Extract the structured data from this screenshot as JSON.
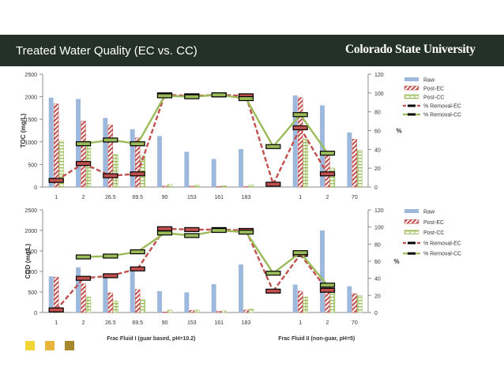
{
  "header": {
    "title": "Treated Water Quality (EC vs. CC)",
    "logo": "Colorado State University"
  },
  "colors": {
    "header_bg": "#243128",
    "raw": "#9db8dd",
    "post_ec": "#c0504d",
    "post_cc": "#9bbb59",
    "removal_ec": "#c0504d",
    "removal_cc": "#9bbb59",
    "square1": "#f2d536",
    "square2": "#e9b53d",
    "square3": "#a5892c"
  },
  "chart_data": [
    {
      "type": "bar",
      "title": "",
      "categories": [
        "1",
        "2",
        "26.5",
        "69.5",
        "90",
        "153",
        "161",
        "183",
        "",
        "1",
        "2",
        "70"
      ],
      "ylabel": "TOC (mg/L)",
      "y2label": "%",
      "ylim": [
        0,
        2500
      ],
      "y2lim": [
        0,
        120
      ],
      "yticks": [
        "0",
        "500",
        "1000",
        "1500",
        "2000",
        "2500"
      ],
      "y2ticks": [
        "0",
        "20",
        "40",
        "60",
        "80",
        "100",
        "120"
      ],
      "series": [
        {
          "name": "Raw",
          "type": "bar",
          "values": [
            1980,
            1950,
            1530,
            1280,
            1130,
            780,
            620,
            840,
            null,
            2030,
            1810,
            1210
          ]
        },
        {
          "name": "Post-EC",
          "type": "bar",
          "values": [
            1840,
            1460,
            1370,
            1090,
            20,
            20,
            15,
            10,
            null,
            1980,
            700,
            1060
          ]
        },
        {
          "name": "Post-CC",
          "type": "bar",
          "values": [
            1020,
            1020,
            720,
            690,
            60,
            40,
            30,
            50,
            null,
            1060,
            420,
            820
          ]
        },
        {
          "name": "% Removal-EC",
          "type": "line",
          "axis": "y2",
          "values": [
            7,
            25,
            12,
            14,
            98,
            97,
            98,
            97,
            3,
            63,
            14,
            null
          ]
        },
        {
          "name": "% Removal-CC",
          "type": "line",
          "axis": "y2",
          "values": [
            null,
            46,
            50,
            46,
            97,
            96,
            98,
            94,
            43,
            77,
            36,
            null
          ]
        }
      ],
      "legend": "right"
    },
    {
      "type": "bar",
      "title": "",
      "categories": [
        "1",
        "2",
        "26.5",
        "69.5",
        "90",
        "153",
        "161",
        "183",
        "",
        "1",
        "2",
        "70"
      ],
      "ylabel": "COD (mg/L)",
      "y2label": "%",
      "ylim": [
        0,
        2500
      ],
      "y2lim": [
        0,
        120
      ],
      "yticks": [
        "0",
        "500",
        "1000",
        "1500",
        "2000",
        "2500"
      ],
      "y2ticks": [
        "0",
        "20",
        "40",
        "60",
        "80",
        "100",
        "120"
      ],
      "group_labels": [
        "Frac Fluid I (guar based, pH=10.2)",
        "Frac Fluid II (non-guar, pH=5)"
      ],
      "series": [
        {
          "name": "Raw",
          "type": "bar",
          "values": [
            880,
            1100,
            870,
            1100,
            520,
            490,
            690,
            1170,
            null,
            680,
            2000,
            640
          ]
        },
        {
          "name": "Post-EC",
          "type": "bar",
          "values": [
            860,
            700,
            480,
            560,
            15,
            50,
            30,
            60,
            null,
            520,
            700,
            460
          ]
        },
        {
          "name": "Post-CC",
          "type": "bar",
          "values": [
            40,
            380,
            280,
            310,
            60,
            60,
            40,
            80,
            null,
            380,
            580,
            420
          ]
        },
        {
          "name": "% Removal-EC",
          "type": "line",
          "axis": "y2",
          "values": [
            3,
            40,
            43,
            51,
            98,
            97,
            97,
            96,
            25,
            68,
            26,
            null
          ]
        },
        {
          "name": "% Removal-CC",
          "type": "line",
          "axis": "y2",
          "values": [
            null,
            65,
            66,
            71,
            93,
            90,
            96,
            94,
            46,
            70,
            32,
            null
          ]
        }
      ],
      "legend": "right"
    }
  ]
}
